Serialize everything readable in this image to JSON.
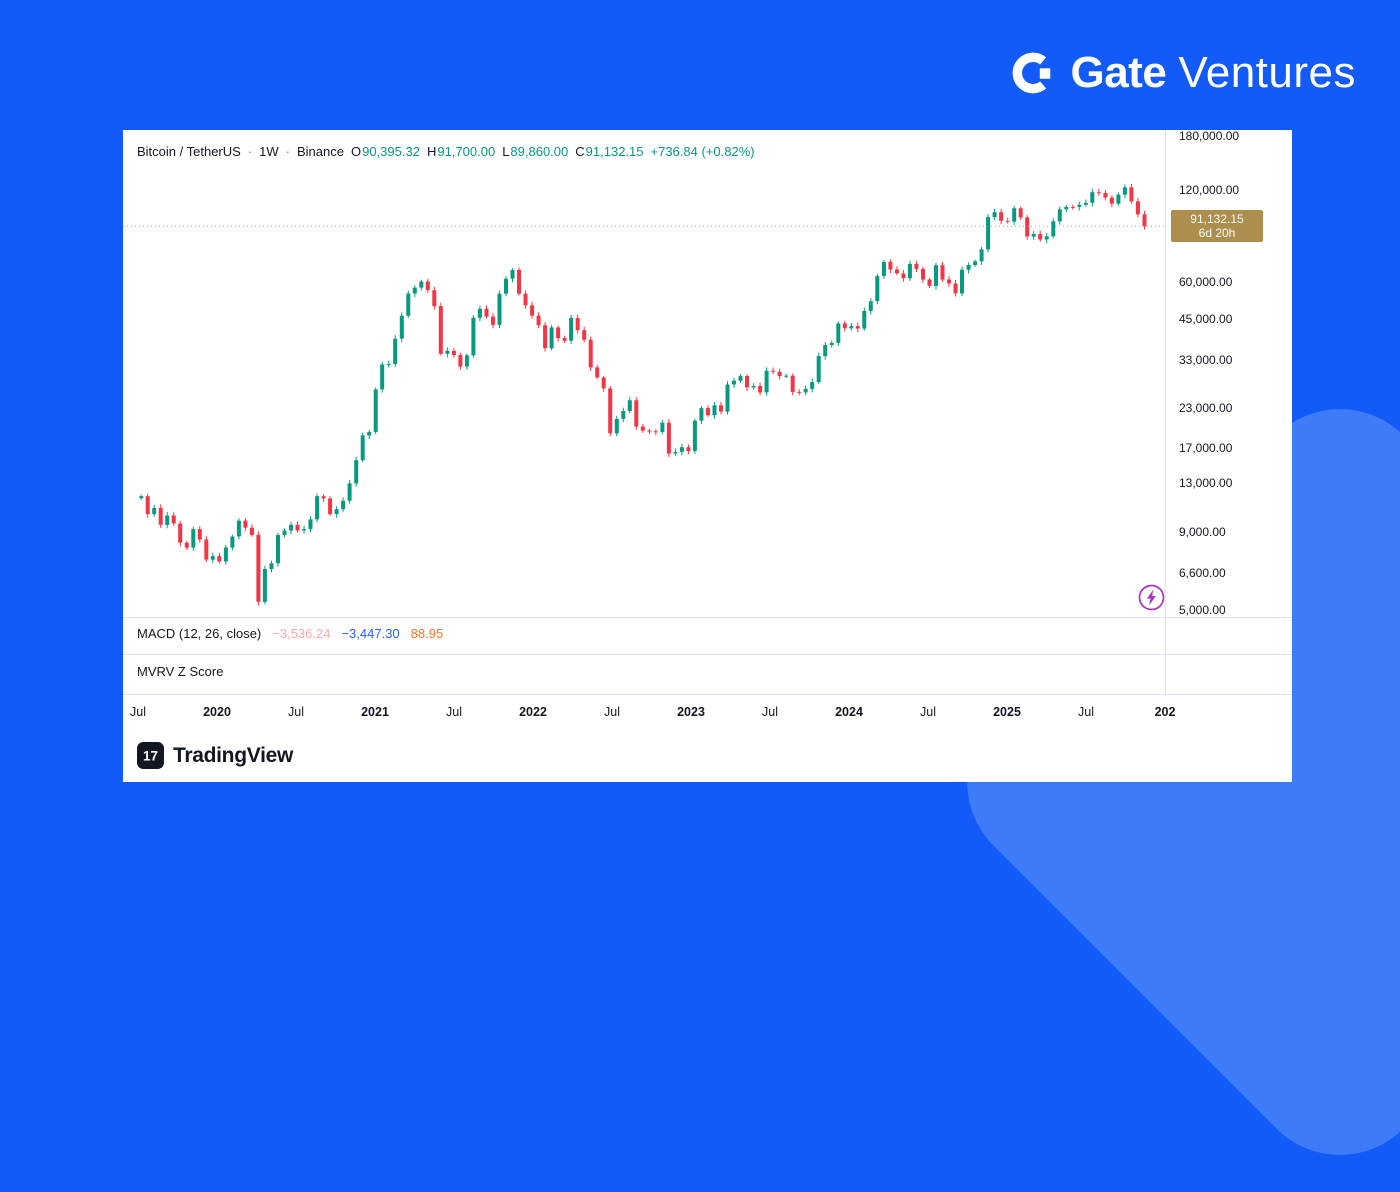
{
  "branding": {
    "bold": "Gate",
    "light": "Ventures"
  },
  "chart": {
    "legend": {
      "symbol": "Bitcoin / TetherUS",
      "sep": "·",
      "interval": "1W",
      "exchange": "Binance",
      "o_label": "O",
      "o": "90,395.32",
      "h_label": "H",
      "h": "91,700.00",
      "l_label": "L",
      "l": "89,860.00",
      "c_label": "C",
      "c": "91,132.15",
      "change": "+736.84 (+0.82%)"
    },
    "price_label": {
      "price": "91,132.15",
      "countdown": "6d 20h"
    },
    "macd": {
      "label": "MACD (12, 26, close)",
      "hist": "−3,536.24",
      "macd": "−3,447.30",
      "signal": "88.95"
    },
    "mvrv": {
      "label": "MVRV Z Score"
    },
    "footer_logo": "TradingView",
    "colors": {
      "up": "#089981",
      "down": "#F23645",
      "price_tag_bg": "#AE8E4D",
      "dotted_line": "#BFA066"
    }
  },
  "chart_data": {
    "type": "candlestick",
    "title": "Bitcoin / TetherUS · 1W · Binance",
    "scale": "log",
    "t_start": 2019.52,
    "t_end": 2025.87,
    "current_price": 91132.15,
    "ohlc_current": {
      "open": 90395.32,
      "high": 91700.0,
      "low": 89860.0,
      "close": 91132.15,
      "change": 736.84,
      "change_pct": 0.82
    },
    "macd_values": {
      "histogram": -3536.24,
      "macd": -3447.3,
      "signal": 88.95
    },
    "y_ticks": [
      180000,
      120000,
      60000,
      45000,
      33000,
      23000,
      17000,
      13000,
      9000,
      6600,
      5000
    ],
    "y_tick_labels": [
      "180,000.00",
      "120,000.00",
      "60,000.00",
      "45,000.00",
      "33,000.00",
      "23,000.00",
      "17,000.00",
      "13,000.00",
      "9,000.00",
      "6,600.00",
      "5,000.00"
    ],
    "x_ticks": [
      {
        "label": "Jul",
        "t": 2019.5,
        "year": false
      },
      {
        "label": "2020",
        "t": 2020.0,
        "year": true
      },
      {
        "label": "Jul",
        "t": 2020.5,
        "year": false
      },
      {
        "label": "2021",
        "t": 2021.0,
        "year": true
      },
      {
        "label": "Jul",
        "t": 2021.5,
        "year": false
      },
      {
        "label": "2022",
        "t": 2022.0,
        "year": true
      },
      {
        "label": "Jul",
        "t": 2022.5,
        "year": false
      },
      {
        "label": "2023",
        "t": 2023.0,
        "year": true
      },
      {
        "label": "Jul",
        "t": 2023.5,
        "year": false
      },
      {
        "label": "2024",
        "t": 2024.0,
        "year": true
      },
      {
        "label": "Jul",
        "t": 2024.5,
        "year": false
      },
      {
        "label": "2025",
        "t": 2025.0,
        "year": true
      },
      {
        "label": "Jul",
        "t": 2025.5,
        "year": false
      },
      {
        "label": "202",
        "t": 2026.0,
        "year": true
      }
    ],
    "closes": [
      11800,
      10300,
      10800,
      9500,
      10200,
      9600,
      8300,
      8000,
      9200,
      8500,
      7300,
      7500,
      7200,
      8000,
      8700,
      9800,
      9300,
      8800,
      5300,
      6800,
      7100,
      8800,
      9100,
      9500,
      9100,
      9200,
      9900,
      11800,
      11600,
      10300,
      10700,
      11400,
      13000,
      15500,
      18700,
      19200,
      26500,
      32000,
      32100,
      38900,
      46300,
      54800,
      57300,
      60000,
      56200,
      49800,
      34700,
      35500,
      34400,
      31500,
      34300,
      45600,
      48800,
      46000,
      43200,
      54700,
      61300,
      65500,
      54700,
      50100,
      46300,
      43100,
      36200,
      42400,
      39100,
      38300,
      45500,
      41500,
      38600,
      31300,
      29000,
      26700,
      19000,
      21200,
      22500,
      24400,
      20000,
      19400,
      19300,
      19200,
      20600,
      16300,
      16500,
      17100,
      16600,
      20900,
      23000,
      21800,
      23500,
      22400,
      27500,
      28300,
      29300,
      26900,
      27200,
      25900,
      30500,
      30300,
      29300,
      29400,
      26000,
      25900,
      26600,
      28000,
      34100,
      37100,
      37700,
      43700,
      42100,
      42800,
      42000,
      48000,
      51700,
      62500,
      69600,
      65700,
      63800,
      61500,
      68500,
      66000,
      60900,
      58000,
      67900,
      60900,
      59100,
      54800,
      65600,
      68000,
      69900,
      76500,
      97700,
      101400,
      95000,
      94500,
      104500,
      97500,
      84300,
      86000,
      82500,
      84500,
      94700,
      103700,
      105600,
      105500,
      107300,
      108900,
      118000,
      117400,
      113400,
      108200,
      115900,
      122500,
      110100,
      99800,
      91132
    ]
  }
}
